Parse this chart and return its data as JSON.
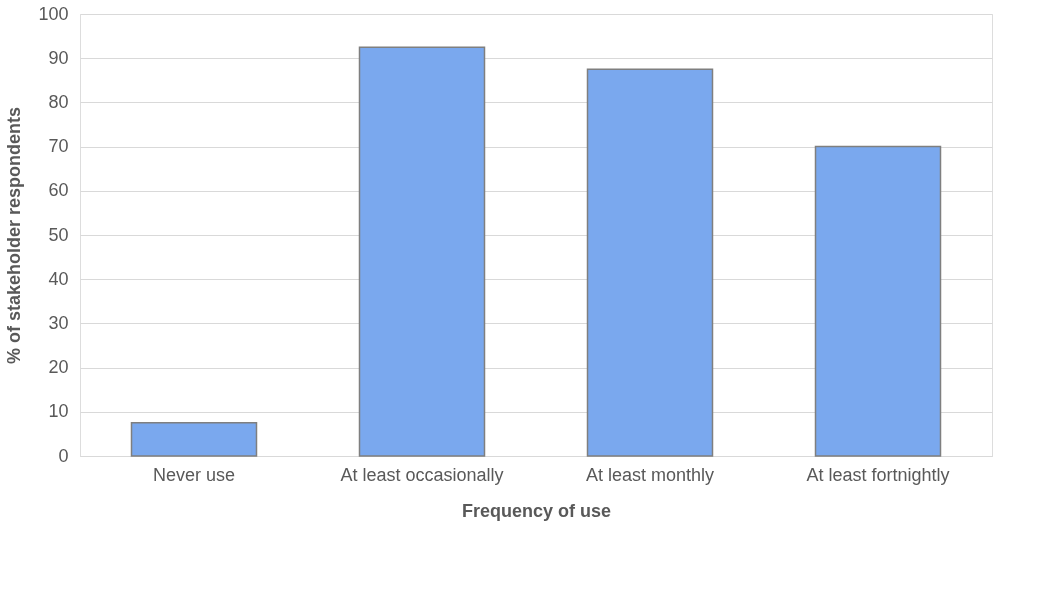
{
  "chart_data": {
    "type": "bar",
    "xlabel": "Frequency of use",
    "ylabel": "% of stakeholder respondents",
    "categories": [
      "Never use",
      "At least occasionally",
      "At least monthly",
      "At least fortnightly"
    ],
    "values": [
      7.5,
      92.5,
      87.5,
      70
    ],
    "color": "#7aa8ee",
    "ylim": [
      0,
      100
    ],
    "yticks": [
      0,
      10,
      20,
      30,
      40,
      50,
      60,
      70,
      80,
      90,
      100
    ],
    "grid": "y"
  }
}
